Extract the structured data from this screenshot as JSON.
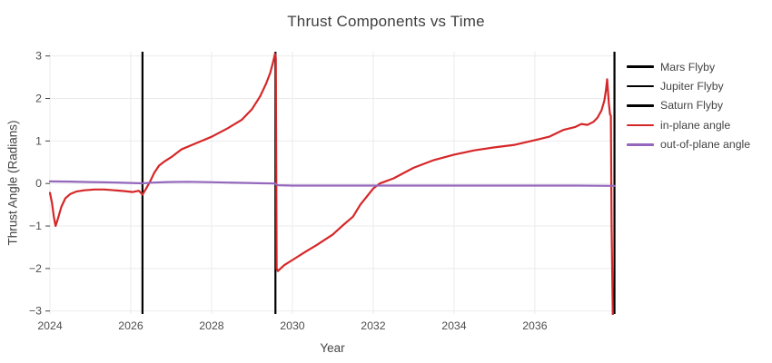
{
  "title": "Thrust Components vs Time",
  "colors": {
    "background": "#ffffff",
    "grid": "#ebebeb",
    "tick_text": "#4d4d4d",
    "title_text": "#3f3f3f",
    "in_plane": "#d62728",
    "out_of_plane": "#9467bd",
    "flyby_line": "#000000"
  },
  "legend": {
    "items": [
      {
        "label": "Mars Flyby",
        "color": "#000000"
      },
      {
        "label": "Jupiter Flyby",
        "color": "#000000"
      },
      {
        "label": "Saturn Flyby",
        "color": "#000000"
      },
      {
        "label": "in-plane angle",
        "color": "#d62728"
      },
      {
        "label": "out-of-plane angle",
        "color": "#9467bd"
      }
    ]
  },
  "chart_data": {
    "type": "line",
    "title": "Thrust Components vs Time",
    "xlabel": "Year",
    "ylabel": "Thrust Angle (Radians)",
    "xlim": [
      2024,
      2037.98
    ],
    "ylim": [
      -3.07,
      3.1
    ],
    "xticks": [
      2024,
      2026,
      2028,
      2030,
      2032,
      2034,
      2036
    ],
    "yticks": [
      -3,
      -2,
      -1,
      0,
      1,
      2,
      3
    ],
    "grid": true,
    "legend_position": "right",
    "vlines": [
      {
        "name": "Mars Flyby",
        "x": 2026.29,
        "color": "#000000"
      },
      {
        "name": "Jupiter Flyby",
        "x": 2029.58,
        "color": "#000000"
      },
      {
        "name": "Saturn Flyby",
        "x": 2037.97,
        "color": "#000000"
      }
    ],
    "series": [
      {
        "name": "in-plane angle",
        "color": "#d62728",
        "points": [
          [
            2024.0,
            -0.22
          ],
          [
            2024.05,
            -0.45
          ],
          [
            2024.1,
            -0.8
          ],
          [
            2024.14,
            -1.0
          ],
          [
            2024.2,
            -0.82
          ],
          [
            2024.28,
            -0.55
          ],
          [
            2024.38,
            -0.35
          ],
          [
            2024.5,
            -0.25
          ],
          [
            2024.65,
            -0.19
          ],
          [
            2024.85,
            -0.16
          ],
          [
            2025.1,
            -0.14
          ],
          [
            2025.35,
            -0.14
          ],
          [
            2025.6,
            -0.16
          ],
          [
            2025.85,
            -0.18
          ],
          [
            2026.05,
            -0.2
          ],
          [
            2026.2,
            -0.17
          ],
          [
            2026.29,
            -0.26
          ],
          [
            2026.38,
            -0.12
          ],
          [
            2026.48,
            0.05
          ],
          [
            2026.58,
            0.25
          ],
          [
            2026.7,
            0.42
          ],
          [
            2026.85,
            0.53
          ],
          [
            2027.0,
            0.62
          ],
          [
            2027.25,
            0.8
          ],
          [
            2027.5,
            0.9
          ],
          [
            2027.75,
            1.0
          ],
          [
            2028.0,
            1.1
          ],
          [
            2028.4,
            1.3
          ],
          [
            2028.75,
            1.5
          ],
          [
            2029.0,
            1.75
          ],
          [
            2029.2,
            2.05
          ],
          [
            2029.35,
            2.35
          ],
          [
            2029.45,
            2.6
          ],
          [
            2029.52,
            2.85
          ],
          [
            2029.57,
            3.05
          ],
          [
            2029.59,
            2.95
          ],
          [
            2029.61,
            -2.0
          ],
          [
            2029.64,
            -2.06
          ],
          [
            2029.8,
            -1.92
          ],
          [
            2030.0,
            -1.8
          ],
          [
            2030.3,
            -1.62
          ],
          [
            2030.6,
            -1.45
          ],
          [
            2031.0,
            -1.2
          ],
          [
            2031.23,
            -1.0
          ],
          [
            2031.5,
            -0.78
          ],
          [
            2031.68,
            -0.5
          ],
          [
            2032.0,
            -0.12
          ],
          [
            2032.16,
            0.0
          ],
          [
            2032.5,
            0.12
          ],
          [
            2033.0,
            0.37
          ],
          [
            2033.5,
            0.55
          ],
          [
            2034.0,
            0.68
          ],
          [
            2034.5,
            0.78
          ],
          [
            2035.0,
            0.85
          ],
          [
            2035.5,
            0.91
          ],
          [
            2036.0,
            1.02
          ],
          [
            2036.35,
            1.1
          ],
          [
            2036.7,
            1.26
          ],
          [
            2037.0,
            1.33
          ],
          [
            2037.15,
            1.4
          ],
          [
            2037.3,
            1.38
          ],
          [
            2037.45,
            1.45
          ],
          [
            2037.55,
            1.55
          ],
          [
            2037.65,
            1.72
          ],
          [
            2037.72,
            1.95
          ],
          [
            2037.76,
            2.2
          ],
          [
            2037.79,
            2.45
          ],
          [
            2037.83,
            1.9
          ],
          [
            2037.86,
            1.62
          ],
          [
            2037.88,
            1.6
          ],
          [
            2037.9,
            -1.0
          ],
          [
            2037.93,
            -3.2
          ]
        ]
      },
      {
        "name": "out-of-plane angle",
        "color": "#9467bd",
        "points": [
          [
            2024.0,
            0.05
          ],
          [
            2024.5,
            0.045
          ],
          [
            2025.0,
            0.035
          ],
          [
            2025.5,
            0.025
          ],
          [
            2026.0,
            0.012
          ],
          [
            2026.29,
            0.005
          ],
          [
            2026.5,
            0.02
          ],
          [
            2026.9,
            0.035
          ],
          [
            2027.4,
            0.04
          ],
          [
            2027.9,
            0.032
          ],
          [
            2028.4,
            0.022
          ],
          [
            2028.9,
            0.012
          ],
          [
            2029.3,
            0.004
          ],
          [
            2029.57,
            0.0
          ],
          [
            2029.63,
            -0.04
          ],
          [
            2030.0,
            -0.048
          ],
          [
            2031.0,
            -0.05
          ],
          [
            2033.0,
            -0.05
          ],
          [
            2035.0,
            -0.05
          ],
          [
            2037.0,
            -0.05
          ],
          [
            2037.97,
            -0.055
          ]
        ]
      }
    ]
  }
}
